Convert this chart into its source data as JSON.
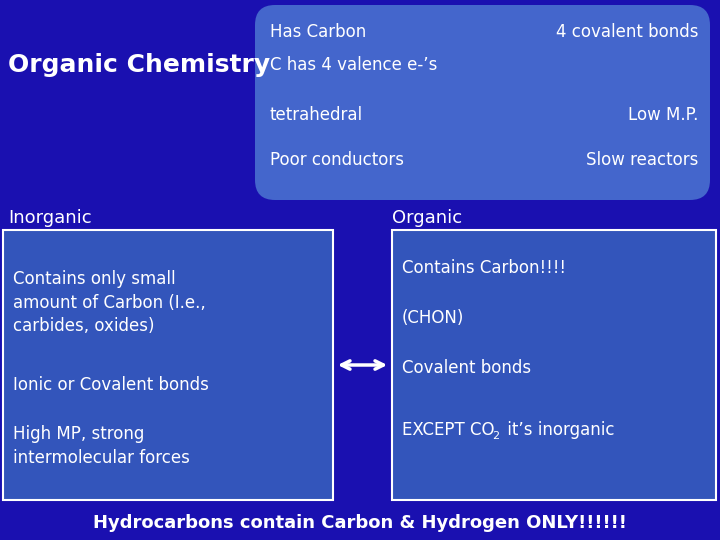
{
  "bg_color": "#1a10b0",
  "box1_color": "#4466cc",
  "box2_color": "#3355bb",
  "box3_color": "#3355bb",
  "white": "#ffffff",
  "title_text": "Organic Chemistry",
  "box1_left_lines": [
    "Has Carbon",
    "C has 4 valence e-’s",
    "tetrahedral",
    "Poor conductors"
  ],
  "box1_right_lines": [
    "4 covalent bonds",
    "",
    "Low M.P.",
    "Slow reactors"
  ],
  "inorganic_label": "Inorganic",
  "organic_label": "Organic",
  "box2_lines": [
    "Contains only small\namount of Carbon (I.e.,\ncarbides, oxides)",
    "Ionic or Covalent bonds",
    "High MP, strong\nintermolecular forces"
  ],
  "box3_lines": [
    "Contains Carbon!!!!",
    "(CHON)",
    "Covalent bonds"
  ],
  "footer": "Hydrocarbons contain Carbon & Hydrogen ONLY!!!!!!",
  "figsize": [
    7.2,
    5.4
  ],
  "dpi": 100
}
